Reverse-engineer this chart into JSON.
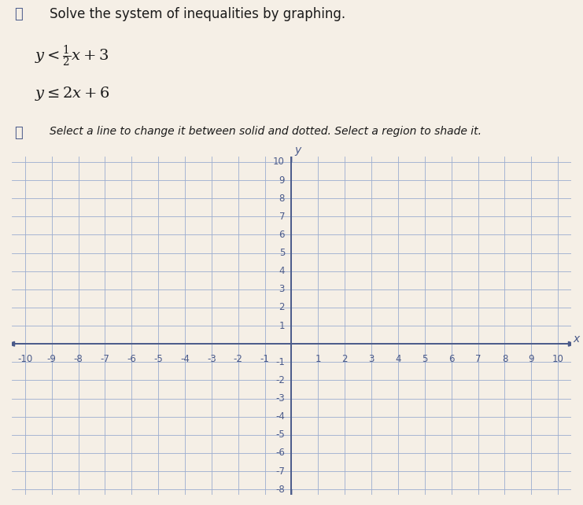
{
  "title_text": "Solve the system of inequalities by graphing.",
  "instruction": "Select a line to change it between solid and dotted. Select a region to shade it.",
  "bg_color": "#f5efe6",
  "grid_color": "#9badd0",
  "axis_color": "#4a5a8a",
  "tick_color": "#4a5a8a",
  "text_color": "#1a1a1a",
  "ineq_color": "#1a1a1a",
  "xmin": -10,
  "xmax": 10,
  "ymin": -8,
  "ymax": 10,
  "xticks": [
    -10,
    -9,
    -8,
    -7,
    -6,
    -5,
    -4,
    -3,
    -2,
    -1,
    1,
    2,
    3,
    4,
    5,
    6,
    7,
    8,
    9,
    10
  ],
  "yticks": [
    -8,
    -7,
    -6,
    -5,
    -4,
    -3,
    -2,
    -1,
    1,
    2,
    3,
    4,
    5,
    6,
    7,
    8,
    9,
    10
  ],
  "fig_width": 7.41,
  "fig_height": 6.42,
  "dpi": 100
}
